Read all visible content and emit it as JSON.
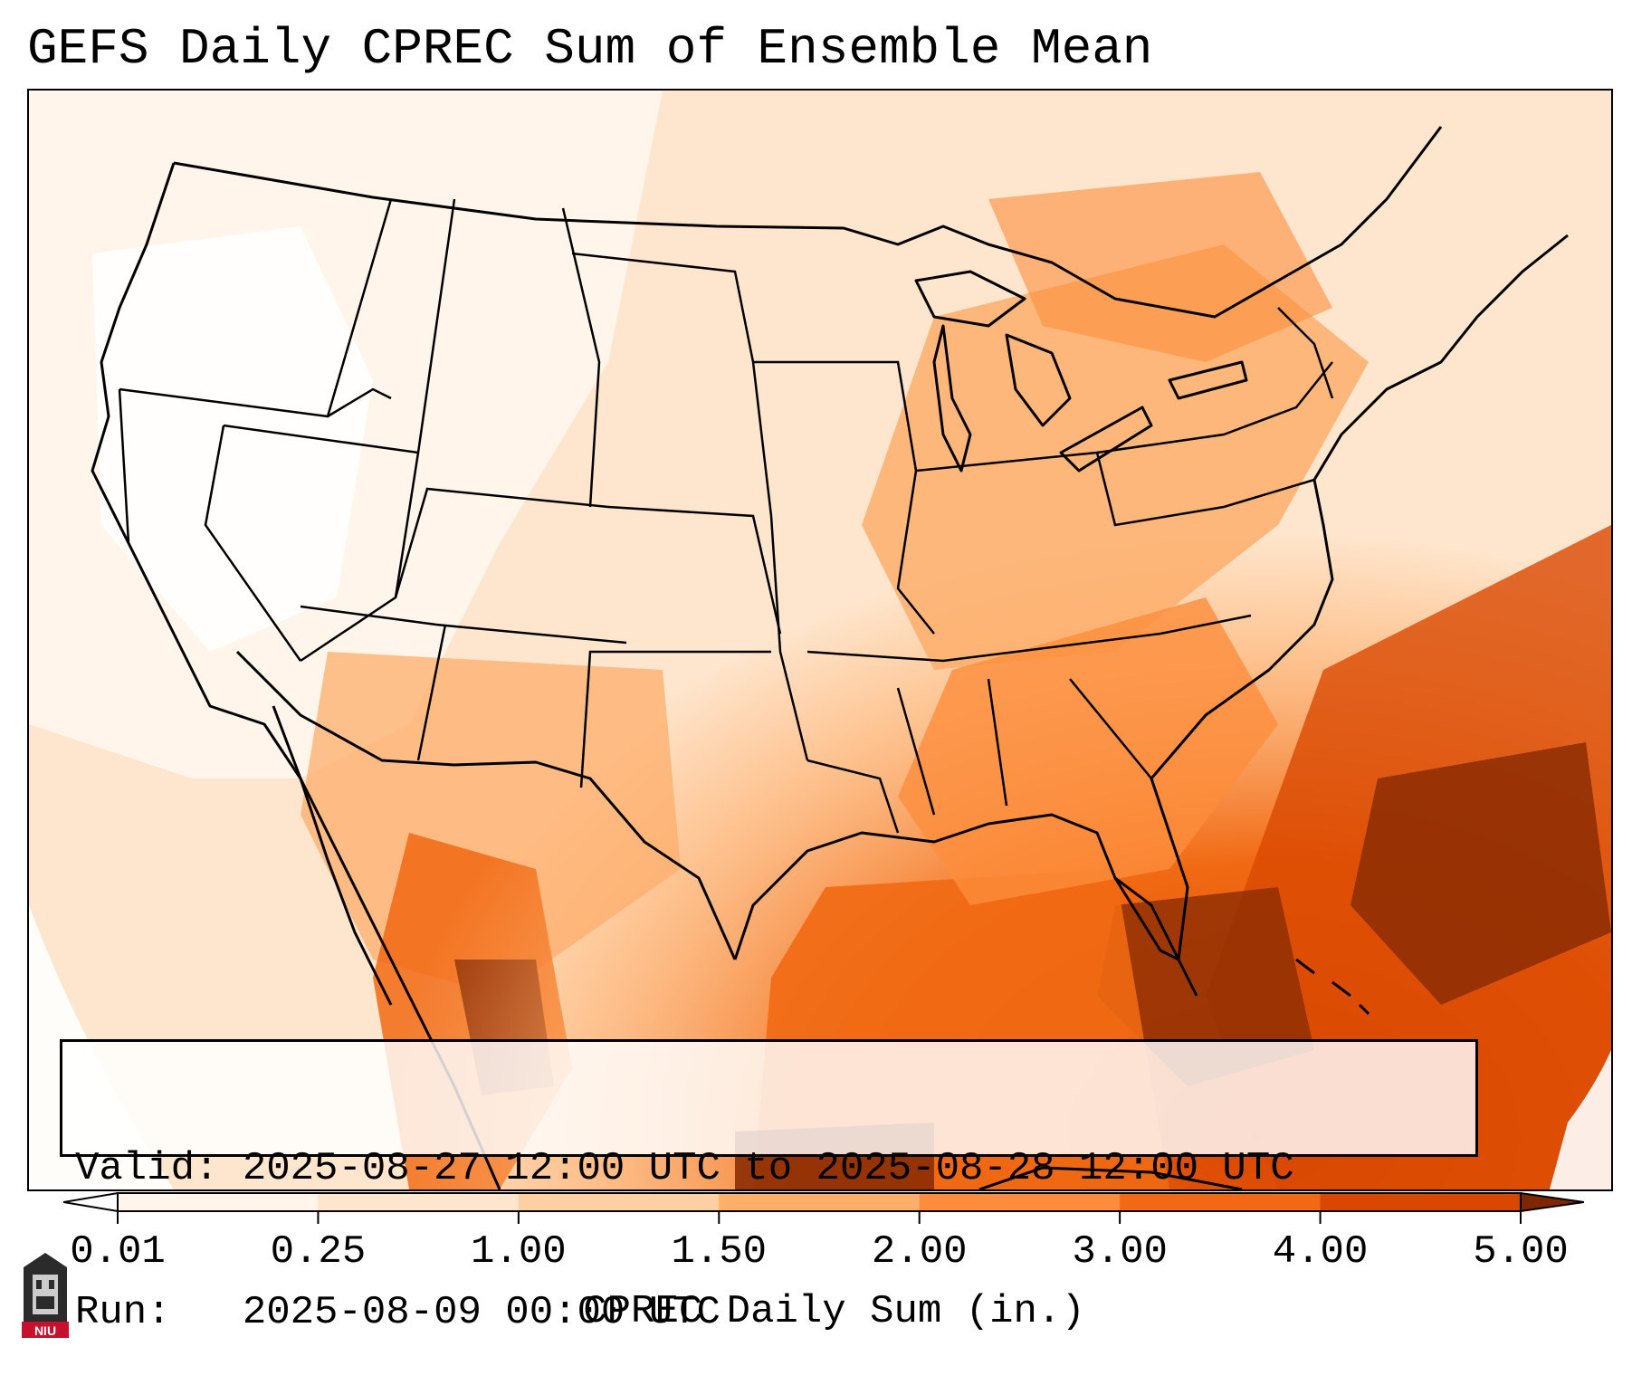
{
  "title": "GEFS Daily CPREC Sum of Ensemble Mean",
  "info": {
    "valid_label": "Valid:",
    "valid_value": "2025-08-27 12:00 UTC to 2025-08-28 12:00 UTC",
    "run_label": "Run:",
    "run_value": "2025-08-09 00:00 UTC"
  },
  "colorbar": {
    "label": "CPREC Daily Sum (in.)",
    "ticks": [
      "0.01",
      "0.25",
      "1.00",
      "1.50",
      "2.00",
      "3.00",
      "4.00",
      "5.00"
    ],
    "colors": [
      "#fff5eb",
      "#fee6ce",
      "#fdd0a2",
      "#fdae6b",
      "#fd8d3c",
      "#f16913",
      "#d94801",
      "#8c2d04"
    ],
    "under_color": "#ffffff",
    "over_color": "#7f2704"
  },
  "map": {
    "region": "Contiguous United States",
    "precip_colors": {
      "trace": "#fff5eb",
      "light": "#fee6ce",
      "moderate": "#fdd0a2",
      "heavy": "#fdae6b",
      "very_heavy": "#fd8d3c",
      "extreme": "#f16913",
      "max": "#d94801",
      "peak": "#8c2d04"
    }
  },
  "logo": {
    "text": "NIU",
    "icon": "niu-tower-logo-icon"
  }
}
